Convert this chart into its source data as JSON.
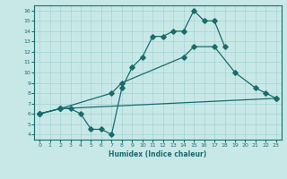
{
  "xlabel": "Humidex (Indice chaleur)",
  "ylabel": "",
  "xlim": [
    -0.5,
    23.5
  ],
  "ylim": [
    3.5,
    16.5
  ],
  "xticks": [
    0,
    1,
    2,
    3,
    4,
    5,
    6,
    7,
    8,
    9,
    10,
    11,
    12,
    13,
    14,
    15,
    16,
    17,
    18,
    19,
    20,
    21,
    22,
    23
  ],
  "yticks": [
    4,
    5,
    6,
    7,
    8,
    9,
    10,
    11,
    12,
    13,
    14,
    15,
    16
  ],
  "bg_color": "#c8e8e8",
  "line_color": "#1a6b6b",
  "line1_x": [
    0,
    2,
    3,
    4,
    5,
    6,
    7,
    8,
    9,
    10,
    11,
    12,
    13,
    14,
    15,
    16,
    17,
    18
  ],
  "line1_y": [
    6,
    6.5,
    6.5,
    6,
    4.5,
    4.5,
    4,
    8.5,
    10.5,
    11.5,
    13.5,
    13.5,
    14,
    14,
    16,
    15,
    15,
    12.5
  ],
  "line2_x": [
    0,
    2,
    7,
    8,
    14,
    15,
    17,
    19,
    21,
    22,
    23
  ],
  "line2_y": [
    6,
    6.5,
    8,
    9,
    11.5,
    12.5,
    12.5,
    10,
    8.5,
    8,
    7.5
  ],
  "line3_x": [
    0,
    2,
    23
  ],
  "line3_y": [
    6,
    6.5,
    7.5
  ]
}
